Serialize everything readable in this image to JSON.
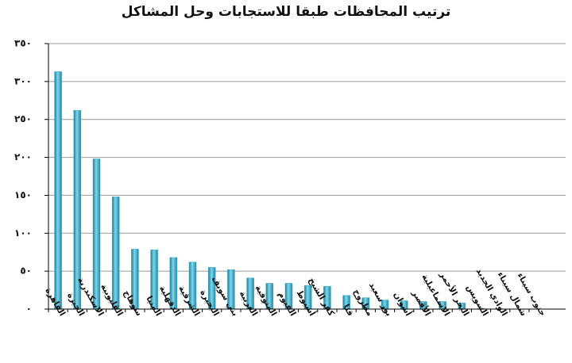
{
  "chart_data": {
    "type": "bar",
    "title": "ترتيب المحافظات طبقا للاستجابات وحل المشاكل",
    "categories": [
      "القاهرة",
      "الجيزة",
      "الاسكندرية",
      "القليوبية",
      "سوهاج",
      "المنيا",
      "الدقهلية",
      "الشرقية",
      "البحيرة",
      "بني سويف",
      "الغربية",
      "المنوفية",
      "الفيوم",
      "أسيوط",
      "كفر الشيخ",
      "قنا",
      "مطروح",
      "بور سعيد",
      "أسوان",
      "الأقصر",
      "الاسماعيلية",
      "البحر الأحمر",
      "السويس",
      "الوادي الجديد",
      "شمال سيناء",
      "جنوب سيناء"
    ],
    "values": [
      313,
      262,
      198,
      148,
      79,
      78,
      68,
      62,
      55,
      52,
      41,
      34,
      34,
      31,
      30,
      18,
      15,
      12,
      11,
      10,
      10,
      8,
      1,
      0.5,
      0,
      0
    ],
    "color": "#31a9c9",
    "ylim": [
      0,
      350
    ],
    "yticks": [
      {
        "value": 0,
        "label": "٠"
      },
      {
        "value": 50,
        "label": "٥٠"
      },
      {
        "value": 100,
        "label": "١٠٠"
      },
      {
        "value": 150,
        "label": "١٥٠"
      },
      {
        "value": 200,
        "label": "٢٠٠"
      },
      {
        "value": 250,
        "label": "٢٥٠"
      },
      {
        "value": 300,
        "label": "٣٠٠"
      },
      {
        "value": 350,
        "label": "٣٥٠"
      }
    ],
    "grid": true
  }
}
